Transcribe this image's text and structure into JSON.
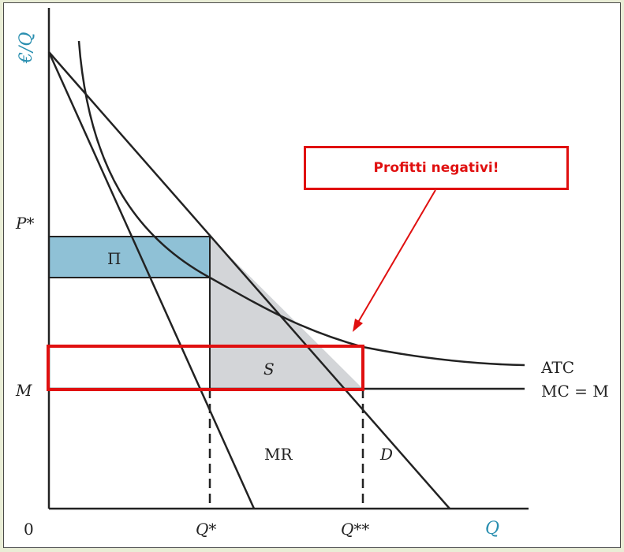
{
  "callout": {
    "text": "Profitti negativi!"
  },
  "axes": {
    "ylabel": "€/Q",
    "xlabel": "Q",
    "origin": "0"
  },
  "ticks": {
    "p_star": "P*",
    "mc_level": "M",
    "q_star": "Q*",
    "q_star_star": "Q**"
  },
  "areas": {
    "profit": "Π",
    "surplus": "S"
  },
  "curves": {
    "atc": "ATC",
    "mc": "MC = M",
    "mr": "MR",
    "demand": "D"
  },
  "colors": {
    "profit_fill": "#8fc1d6",
    "surplus_fill": "#d3d5d8",
    "highlight": "#e01010",
    "axis_label": "#2a8fb0"
  }
}
